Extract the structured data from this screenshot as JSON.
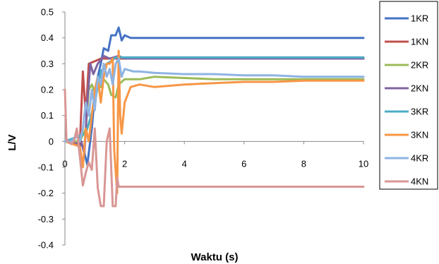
{
  "chart_data": {
    "type": "line",
    "title": "",
    "xlabel": "Waktu (s)",
    "ylabel": "L/V",
    "xlim": [
      0,
      10
    ],
    "ylim": [
      -0.4,
      0.5
    ],
    "xticks": [
      "0",
      "2",
      "4",
      "6",
      "8",
      "10"
    ],
    "yticks": [
      "0.5",
      "0.4",
      "0.3",
      "0.2",
      "0.1",
      "0",
      "-0.1",
      "-0.2",
      "-0.3",
      "-0.4"
    ],
    "grid": false,
    "legend_position": "right",
    "series": [
      {
        "name": "1KR",
        "color": "#4472C4",
        "x": [
          0,
          0.2,
          0.4,
          0.6,
          0.75,
          0.9,
          1.0,
          1.1,
          1.2,
          1.3,
          1.45,
          1.55,
          1.7,
          1.8,
          1.9,
          2.0,
          2.2,
          3,
          4,
          5,
          6,
          7,
          8,
          9,
          10
        ],
        "y": [
          0,
          0.0,
          0.0,
          -0.02,
          -0.09,
          0.05,
          0.18,
          0.25,
          0.3,
          0.36,
          0.35,
          0.41,
          0.41,
          0.44,
          0.39,
          0.41,
          0.4,
          0.4,
          0.4,
          0.4,
          0.4,
          0.4,
          0.4,
          0.4,
          0.4
        ]
      },
      {
        "name": "1KN",
        "color": "#C0504D",
        "x": [
          0,
          0.3,
          0.5,
          0.6,
          0.7,
          0.8,
          1.0,
          1.2,
          1.5,
          2.0,
          3,
          4,
          5,
          6,
          7,
          8,
          9,
          10
        ],
        "y": [
          0,
          0.0,
          -0.01,
          0.27,
          0.1,
          0.3,
          0.31,
          0.32,
          0.32,
          0.32,
          0.32,
          0.32,
          0.32,
          0.32,
          0.32,
          0.32,
          0.32,
          0.32
        ]
      },
      {
        "name": "2KR",
        "color": "#9BBB59",
        "x": [
          0,
          0.5,
          0.7,
          0.8,
          0.9,
          1.0,
          1.1,
          1.2,
          1.3,
          1.45,
          1.55,
          1.7,
          1.8,
          2.0,
          2.5,
          3,
          4,
          5,
          6,
          7,
          8,
          9,
          10
        ],
        "y": [
          0,
          0.0,
          0.05,
          0.2,
          0.22,
          0.19,
          0.25,
          0.21,
          0.24,
          0.22,
          0.18,
          0.17,
          0.22,
          0.24,
          0.24,
          0.25,
          0.245,
          0.24,
          0.24,
          0.24,
          0.24,
          0.24,
          0.24
        ]
      },
      {
        "name": "2KN",
        "color": "#8064A2",
        "x": [
          0,
          0.4,
          0.55,
          0.65,
          0.75,
          0.85,
          0.95,
          1.1,
          1.3,
          1.5,
          1.8,
          2.0,
          3,
          4,
          5,
          6,
          7,
          8,
          9,
          10
        ],
        "y": [
          0,
          -0.01,
          0.0,
          -0.05,
          0.15,
          0.3,
          0.26,
          0.3,
          0.33,
          0.32,
          0.33,
          0.32,
          0.32,
          0.32,
          0.32,
          0.32,
          0.32,
          0.32,
          0.32,
          0.32
        ]
      },
      {
        "name": "3KR",
        "color": "#4BACC6",
        "x": [
          0,
          0.7,
          1.0,
          1.2,
          1.4,
          1.55,
          1.7,
          2.0,
          3,
          4,
          5,
          6,
          7,
          8,
          9,
          10
        ],
        "y": [
          0,
          0.03,
          0.15,
          0.27,
          0.3,
          0.31,
          0.325,
          0.325,
          0.325,
          0.325,
          0.325,
          0.325,
          0.325,
          0.325,
          0.325,
          0.325
        ]
      },
      {
        "name": "3KN",
        "color": "#F79646",
        "x": [
          0,
          0.5,
          0.6,
          0.7,
          0.8,
          0.9,
          1.0,
          1.1,
          1.2,
          1.3,
          1.4,
          1.5,
          1.6,
          1.65,
          1.75,
          1.8,
          1.85,
          1.9,
          2.0,
          2.2,
          2.5,
          3,
          4,
          5,
          6,
          7,
          8,
          9,
          10
        ],
        "y": [
          0,
          -0.02,
          -0.1,
          0.05,
          0.0,
          0.1,
          0.2,
          0.25,
          0.15,
          0.25,
          0.3,
          0.3,
          0.32,
          -0.03,
          -0.2,
          0.35,
          0.1,
          0.03,
          0.15,
          0.21,
          0.22,
          0.21,
          0.22,
          0.225,
          0.23,
          0.23,
          0.235,
          0.235,
          0.235
        ]
      },
      {
        "name": "4KR",
        "color": "#8EB4E3",
        "x": [
          0,
          0.2,
          0.4,
          0.5,
          0.6,
          0.7,
          0.8,
          0.9,
          1.0,
          1.1,
          1.2,
          1.3,
          1.4,
          1.5,
          1.6,
          1.7,
          1.8,
          1.9,
          2.0,
          2.3,
          2.5,
          3,
          4,
          5,
          6,
          7,
          8,
          9,
          10
        ],
        "y": [
          0,
          0.0,
          0.02,
          0.0,
          0.05,
          0.15,
          0.1,
          0.2,
          0.12,
          0.25,
          0.22,
          0.3,
          0.25,
          0.28,
          0.22,
          0.3,
          0.32,
          0.25,
          0.28,
          0.27,
          0.27,
          0.265,
          0.26,
          0.26,
          0.255,
          0.255,
          0.25,
          0.25,
          0.25
        ]
      },
      {
        "name": "4KN",
        "color": "#D99694",
        "x": [
          0,
          0.05,
          0.1,
          0.2,
          0.3,
          0.4,
          0.5,
          0.6,
          0.7,
          0.8,
          0.9,
          1.0,
          1.1,
          1.2,
          1.3,
          1.4,
          1.5,
          1.6,
          1.7,
          1.75,
          1.8,
          2,
          3,
          4,
          5,
          6,
          7,
          8,
          9,
          10
        ],
        "y": [
          0.2,
          0.01,
          0.0,
          -0.01,
          0.0,
          0.05,
          -0.06,
          -0.17,
          -0.12,
          -0.08,
          -0.11,
          0.05,
          -0.18,
          -0.25,
          -0.25,
          0.0,
          0.05,
          -0.25,
          -0.25,
          -0.14,
          -0.175,
          -0.175,
          -0.175,
          -0.175,
          -0.175,
          -0.175,
          -0.175,
          -0.175,
          -0.175,
          -0.175
        ]
      }
    ]
  }
}
